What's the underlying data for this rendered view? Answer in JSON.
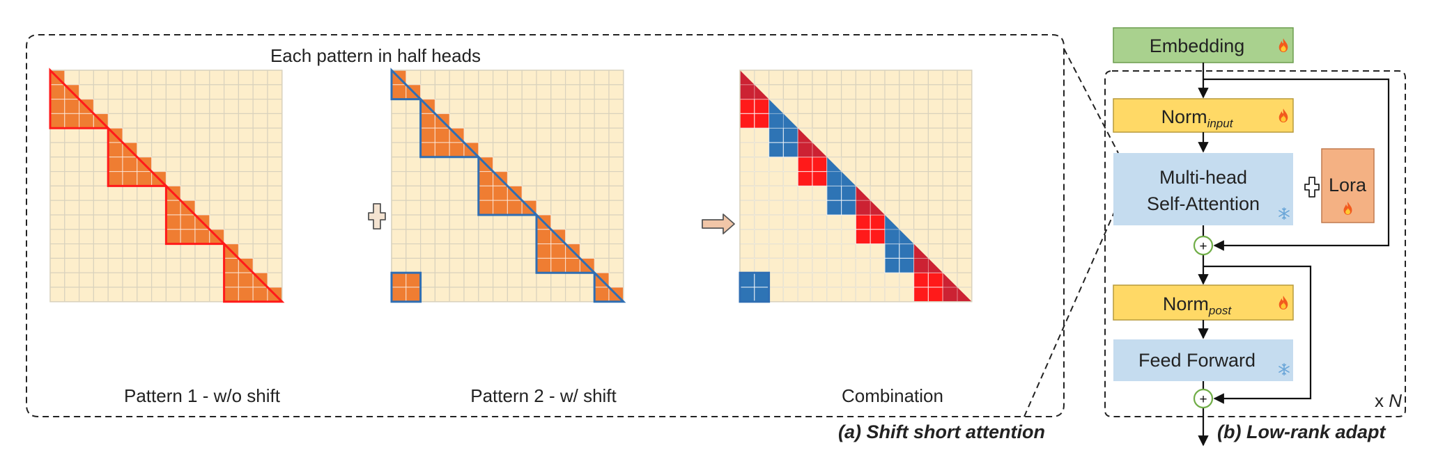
{
  "panel_a": {
    "header": "Each pattern in half heads",
    "grid_cells": 16,
    "matrix_labels": [
      "Pattern 1 - w/o shift",
      "Pattern 2 - w/ shift",
      "Combination"
    ],
    "caption": "(a) Shift short attention",
    "colors": {
      "cell_bg": "#fdeecb",
      "cell_line": "#d9d2bd",
      "orange": "#ef7d32",
      "red": "#ff1a1a",
      "dark_red": "#cc2233",
      "blue": "#2e74b5",
      "blue_outline": "#2f6eb3",
      "plus_fill": "#f4e3d1",
      "arrow_fill": "#f1c6a8"
    }
  },
  "panel_b": {
    "embedding": "Embedding",
    "norm_input_base": "Norm",
    "norm_input_sub": "input",
    "attention_line1": "Multi-head",
    "attention_line2": "Self-Attention",
    "lora": "Lora",
    "norm_post_base": "Norm",
    "norm_post_sub": "post",
    "feed_forward": "Feed Forward",
    "sum_symbol": "+",
    "repeat_prefix": "x ",
    "repeat_var": "N",
    "caption": "(b) Low-rank adapt",
    "icons": [
      "fire-icon",
      "snowflake-icon"
    ],
    "colors": {
      "embedding": "#a9d18e",
      "norm": "#ffd966",
      "attention": "#c5dcef",
      "lora": "#f4b183",
      "sum_circle": "#70ad47"
    }
  }
}
